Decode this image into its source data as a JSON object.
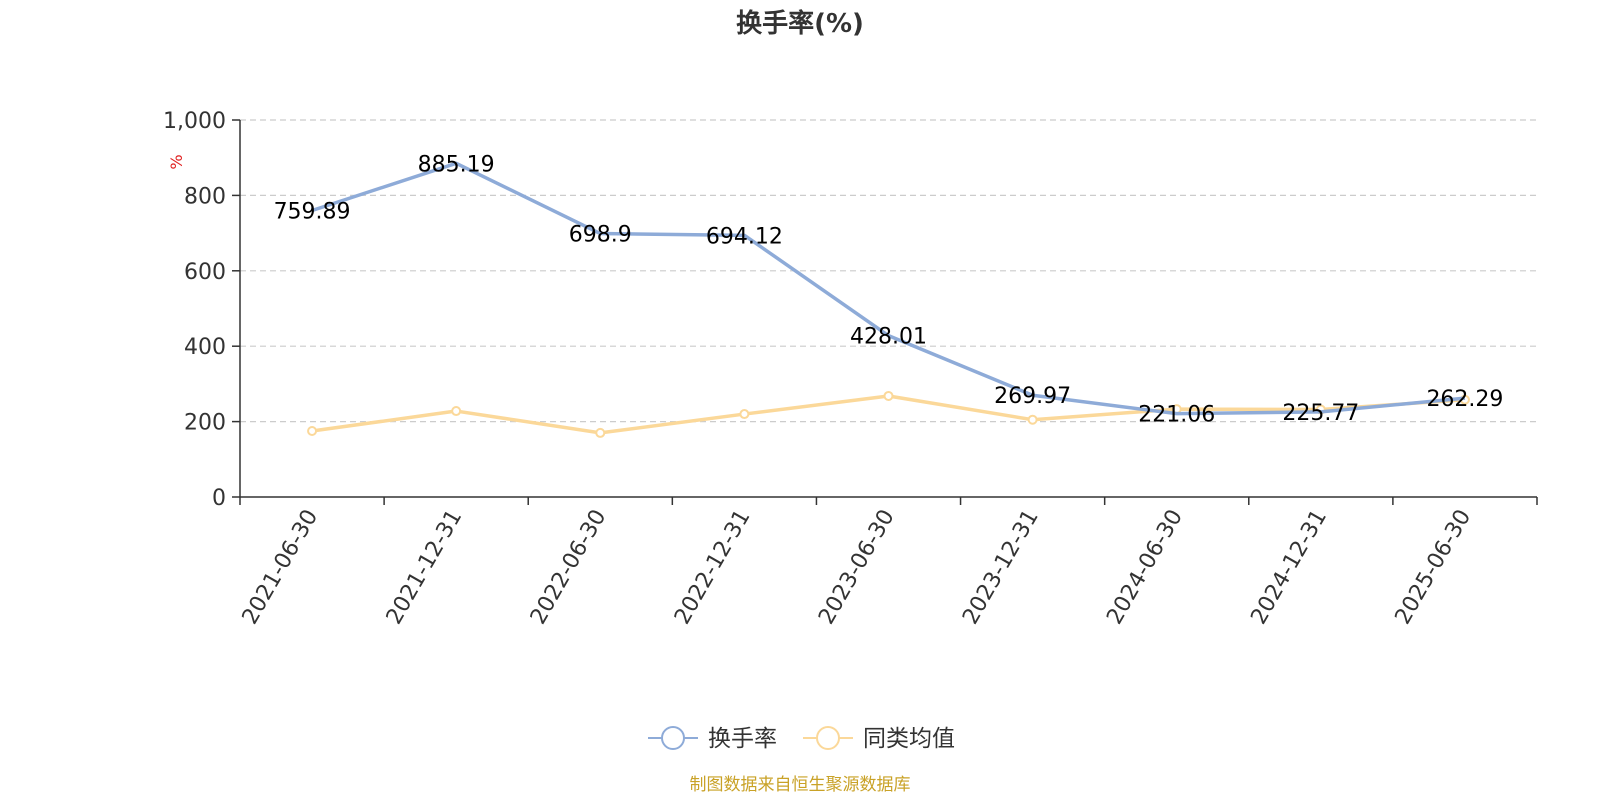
{
  "chart_data": {
    "type": "line",
    "title": "换手率(%)",
    "ylabel": "%",
    "ylim": [
      0,
      1000
    ],
    "yticks": [
      0,
      200,
      400,
      600,
      800,
      1000
    ],
    "ytick_labels": [
      "0",
      "200",
      "400",
      "600",
      "800",
      "1,000"
    ],
    "grid": true,
    "legend_position": "bottom-center",
    "categories": [
      "2021-06-30",
      "2021-12-31",
      "2022-06-30",
      "2022-12-31",
      "2023-06-30",
      "2023-12-31",
      "2024-06-30",
      "2024-12-31",
      "2025-06-30"
    ],
    "series": [
      {
        "name": "换手率",
        "color": "#8eabd8",
        "values": [
          759.89,
          885.19,
          698.9,
          694.12,
          428.01,
          269.97,
          221.06,
          225.77,
          262.29
        ],
        "labels": [
          "759.89",
          "885.19",
          "698.9",
          "694.12",
          "428.01",
          "269.97",
          "221.06",
          "225.77",
          "262.29"
        ]
      },
      {
        "name": "同类均值",
        "color": "#fbd899",
        "values": [
          175,
          228,
          170,
          220,
          268,
          205,
          233,
          232,
          258
        ]
      }
    ],
    "source_note": "制图数据来自恒生聚源数据库",
    "unit_color": "#e02020",
    "source_color": "#c9a227"
  }
}
